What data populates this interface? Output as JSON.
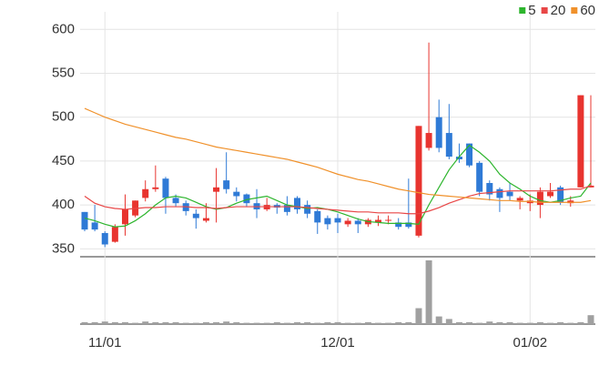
{
  "chart_data": {
    "type": "candlestick",
    "categories": [
      null,
      null,
      "11/01",
      null,
      null,
      null,
      null,
      null,
      null,
      null,
      null,
      null,
      null,
      null,
      null,
      null,
      null,
      null,
      null,
      null,
      null,
      null,
      null,
      null,
      null,
      "12/01",
      null,
      null,
      null,
      null,
      null,
      null,
      null,
      null,
      null,
      null,
      null,
      null,
      null,
      null,
      null,
      null,
      null,
      null,
      "01/02",
      null,
      null,
      null,
      null,
      null,
      null
    ],
    "open": [
      392,
      380,
      368,
      358,
      378,
      388,
      408,
      418,
      430,
      408,
      402,
      390,
      382,
      415,
      428,
      415,
      412,
      402,
      395,
      400,
      400,
      408,
      400,
      393,
      385,
      385,
      378,
      382,
      378,
      380,
      382,
      380,
      380,
      365,
      465,
      500,
      482,
      455,
      470,
      448,
      425,
      418,
      415,
      405,
      402,
      400,
      410,
      420,
      402,
      420,
      420
    ],
    "high": [
      392,
      400,
      370,
      378,
      412,
      405,
      428,
      445,
      432,
      412,
      405,
      395,
      402,
      442,
      460,
      420,
      413,
      418,
      408,
      402,
      410,
      410,
      405,
      395,
      388,
      390,
      385,
      385,
      385,
      388,
      388,
      385,
      430,
      490,
      585,
      520,
      515,
      470,
      470,
      450,
      428,
      420,
      425,
      410,
      412,
      420,
      425,
      422,
      410,
      525,
      525
    ],
    "low": [
      370,
      370,
      352,
      357,
      365,
      386,
      404,
      415,
      390,
      398,
      388,
      373,
      380,
      380,
      413,
      404,
      398,
      385,
      393,
      390,
      388,
      390,
      385,
      367,
      372,
      368,
      375,
      368,
      375,
      376,
      378,
      372,
      373,
      363,
      462,
      460,
      452,
      448,
      443,
      410,
      405,
      392,
      405,
      395,
      393,
      385,
      408,
      400,
      398,
      420,
      420
    ],
    "close": [
      372,
      372,
      355,
      375,
      395,
      405,
      418,
      420,
      408,
      402,
      393,
      385,
      385,
      420,
      418,
      410,
      402,
      395,
      400,
      397,
      392,
      395,
      390,
      380,
      378,
      380,
      382,
      378,
      383,
      383,
      383,
      375,
      375,
      490,
      482,
      465,
      455,
      452,
      445,
      415,
      412,
      408,
      410,
      408,
      405,
      415,
      415,
      403,
      405,
      525,
      422
    ],
    "up_color": "#e8342f",
    "down_color": "#2f7ad6",
    "series": [
      {
        "name": "5",
        "color": "#2db52d",
        "values": [
          385,
          382,
          378,
          375,
          376,
          382,
          390,
          400,
          408,
          410,
          408,
          403,
          398,
          395,
          397,
          402,
          406,
          408,
          410,
          405,
          400,
          398,
          396,
          397,
          395,
          392,
          388,
          384,
          381,
          380,
          379,
          379,
          379,
          378,
          400,
          420,
          440,
          455,
          468,
          460,
          450,
          435,
          425,
          418,
          410,
          405,
          403,
          405,
          408,
          410,
          425
        ]
      },
      {
        "name": "20",
        "color": "#e84646",
        "values": [
          410,
          402,
          398,
          396,
          395,
          396,
          397,
          397,
          398,
          398,
          398,
          397,
          397,
          396,
          397,
          398,
          398,
          398,
          398,
          398,
          398,
          398,
          397,
          396,
          395,
          394,
          393,
          392,
          392,
          391,
          391,
          391,
          390,
          390,
          393,
          397,
          402,
          406,
          410,
          413,
          414,
          415,
          416,
          416,
          416,
          416,
          416,
          417,
          418,
          418,
          422
        ]
      },
      {
        "name": "60",
        "color": "#f0912b",
        "values": [
          510,
          505,
          500,
          496,
          492,
          489,
          486,
          483,
          480,
          477,
          475,
          472,
          469,
          466,
          464,
          462,
          460,
          458,
          456,
          454,
          452,
          449,
          446,
          443,
          439,
          435,
          432,
          429,
          427,
          424,
          421,
          418,
          416,
          414,
          412,
          411,
          410,
          409,
          408,
          407,
          406,
          405,
          405,
          404,
          404,
          403,
          403,
          403,
          403,
          403,
          405
        ]
      }
    ],
    "volume": {
      "color": "#a0a0a0",
      "values": [
        3,
        3,
        4,
        3,
        3,
        2,
        4,
        3,
        3,
        3,
        2,
        2,
        3,
        3,
        4,
        3,
        2,
        2,
        2,
        3,
        2,
        3,
        3,
        2,
        3,
        3,
        2,
        2,
        3,
        2,
        2,
        3,
        3,
        25,
        100,
        12,
        8,
        3,
        3,
        2,
        4,
        3,
        3,
        2,
        2,
        3,
        2,
        3,
        2,
        3,
        14
      ],
      "ylim": [
        0,
        100
      ]
    },
    "ylim": [
      341,
      620
    ],
    "yticks": [
      350,
      400,
      450,
      500,
      550,
      600
    ],
    "grid": true,
    "legend": "upper right"
  }
}
